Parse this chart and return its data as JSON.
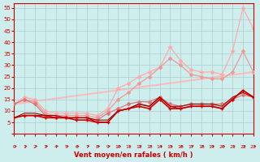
{
  "xlabel": "Vent moyen/en rafales ( km/h )",
  "bg_color": "#cdeeed",
  "grid_color": "#b0cccc",
  "text_color": "#cc0000",
  "ylim": [
    0,
    57
  ],
  "xlim": [
    0,
    23
  ],
  "yticks": [
    0,
    5,
    10,
    15,
    20,
    25,
    30,
    35,
    40,
    45,
    50,
    55
  ],
  "xticks": [
    0,
    1,
    2,
    3,
    4,
    5,
    6,
    7,
    8,
    9,
    10,
    11,
    12,
    13,
    14,
    15,
    16,
    17,
    18,
    19,
    20,
    21,
    22,
    23
  ],
  "series": [
    {
      "x": [
        0,
        23
      ],
      "y": [
        13,
        27
      ],
      "color": "#ffbbbb",
      "lw": 1.5,
      "marker": null,
      "ms": 0,
      "zorder": 1
    },
    {
      "x": [
        0,
        1,
        2,
        3,
        4,
        5,
        6,
        7,
        8,
        9,
        10,
        11,
        12,
        13,
        14,
        15,
        16,
        17,
        18,
        19,
        20,
        21,
        22,
        23
      ],
      "y": [
        13,
        16,
        15,
        10,
        9,
        9,
        9,
        9,
        8,
        11,
        20,
        22,
        25,
        27,
        29,
        38,
        32,
        28,
        27,
        27,
        26,
        36,
        55,
        46
      ],
      "color": "#ffaaaa",
      "lw": 0.9,
      "marker": "D",
      "ms": 2,
      "zorder": 2
    },
    {
      "x": [
        0,
        1,
        2,
        3,
        4,
        5,
        6,
        7,
        8,
        9,
        10,
        11,
        12,
        13,
        14,
        15,
        16,
        17,
        18,
        19,
        20,
        21,
        22,
        23
      ],
      "y": [
        13,
        15,
        14,
        9,
        8,
        8,
        8,
        8,
        7,
        10,
        15,
        18,
        22,
        25,
        29,
        33,
        30,
        26,
        25,
        24,
        24,
        27,
        36,
        27
      ],
      "color": "#ee9999",
      "lw": 0.9,
      "marker": "D",
      "ms": 2,
      "zorder": 3
    },
    {
      "x": [
        0,
        1,
        2,
        3,
        4,
        5,
        6,
        7,
        8,
        9,
        10,
        11,
        12,
        13,
        14,
        15,
        16,
        17,
        18,
        19,
        20,
        21,
        22,
        23
      ],
      "y": [
        13,
        15,
        13,
        8,
        7,
        7,
        7,
        7,
        6,
        9,
        11,
        13,
        14,
        14,
        16,
        13,
        12,
        13,
        13,
        13,
        13,
        15,
        17,
        16
      ],
      "color": "#dd7777",
      "lw": 0.9,
      "marker": "D",
      "ms": 2,
      "zorder": 4
    },
    {
      "x": [
        0,
        1,
        2,
        3,
        4,
        5,
        6,
        7,
        8,
        9,
        10,
        11,
        12,
        13,
        14,
        15,
        16,
        17,
        18,
        19,
        20,
        21,
        22,
        23
      ],
      "y": [
        7,
        8,
        8,
        8,
        7,
        7,
        7,
        7,
        5,
        5,
        10,
        11,
        13,
        12,
        16,
        12,
        11,
        12,
        12,
        12,
        11,
        15,
        19,
        16
      ],
      "color": "#cc0000",
      "lw": 1.0,
      "marker": null,
      "ms": 0,
      "zorder": 5
    },
    {
      "x": [
        0,
        1,
        2,
        3,
        4,
        5,
        6,
        7,
        8,
        9,
        10,
        11,
        12,
        13,
        14,
        15,
        16,
        17,
        18,
        19,
        20,
        21,
        22,
        23
      ],
      "y": [
        7,
        8,
        8,
        7,
        7,
        7,
        6,
        6,
        5,
        5,
        10,
        11,
        12,
        11,
        15,
        11,
        11,
        12,
        12,
        12,
        11,
        15,
        19,
        16
      ],
      "color": "#cc0000",
      "lw": 1.2,
      "marker": "+",
      "ms": 3.5,
      "zorder": 6
    },
    {
      "x": [
        0,
        1,
        2,
        3,
        4,
        5,
        6,
        7,
        8,
        9,
        10,
        11,
        12,
        13,
        14,
        15,
        16,
        17,
        18,
        19,
        20,
        21,
        22,
        23
      ],
      "y": [
        7,
        9,
        9,
        8,
        8,
        7,
        7,
        7,
        6,
        6,
        10,
        11,
        13,
        12,
        16,
        12,
        12,
        13,
        13,
        13,
        12,
        16,
        18,
        16
      ],
      "color": "#990000",
      "lw": 0.8,
      "marker": null,
      "ms": 0,
      "zorder": 5
    }
  ],
  "wind_arrow_color": "#cc0000"
}
